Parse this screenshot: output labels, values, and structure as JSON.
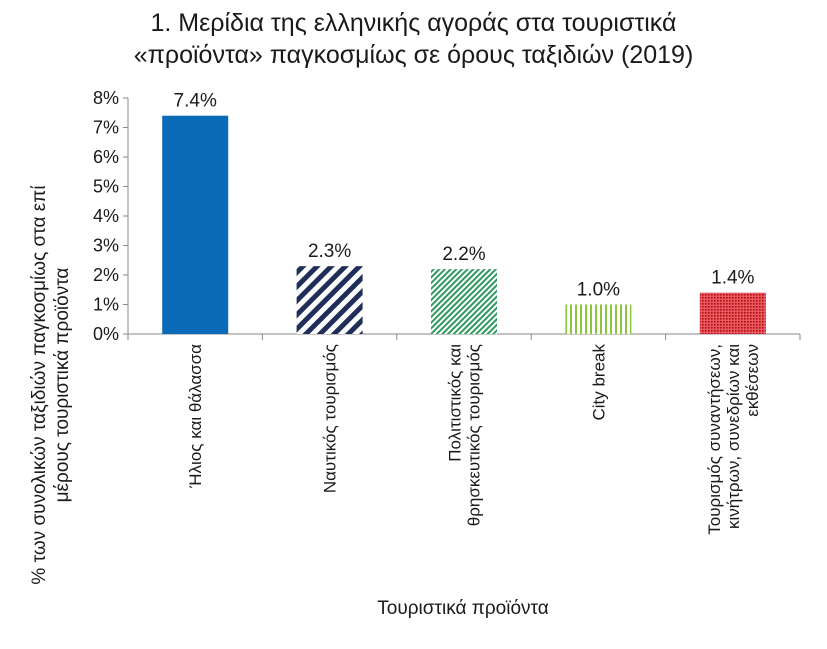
{
  "chart_data": {
    "type": "bar",
    "title": [
      "1. Μερίδια της ελληνικής αγοράς στα τουριστικά",
      "«προϊόντα» παγκοσμίως σε όρους ταξιδιών (2019)"
    ],
    "xlabel": "Τουριστικά προϊόντα",
    "ylabel": [
      "% των συνολικών ταξιδιών παγκοσμίως στα επί",
      "μέρους τουριστικά προϊόντα"
    ],
    "categories": [
      [
        "Ήλιος και θάλασσα"
      ],
      [
        "Ναυτικός τουρισμός"
      ],
      [
        "Πολιτιστικός και",
        "θρησκευτικός τουρισμός"
      ],
      [
        "City break"
      ],
      [
        "Τουρισμός συναντήσεων,",
        "κινήτρων, συνεδρίων και",
        "εκθέσεων"
      ]
    ],
    "values": [
      7.4,
      2.3,
      2.2,
      1.0,
      1.4
    ],
    "data_labels": [
      "7.4%",
      "2.3%",
      "2.2%",
      "1.0%",
      "1.4%"
    ],
    "yticks": [
      "0%",
      "1%",
      "2%",
      "3%",
      "4%",
      "5%",
      "6%",
      "7%",
      "8%"
    ],
    "ylim": [
      0,
      8
    ],
    "grid": false,
    "legend": "none",
    "bar_styles": [
      {
        "pattern": "solid",
        "color": "#0a6ab8"
      },
      {
        "pattern": "diagonal-stripes",
        "color": "#1f2f5a"
      },
      {
        "pattern": "fine-diagonal-hatch",
        "color": "#2e9a5e"
      },
      {
        "pattern": "vertical-stripes",
        "color": "#8cc63f"
      },
      {
        "pattern": "dots",
        "color": "#d61f26"
      }
    ]
  }
}
